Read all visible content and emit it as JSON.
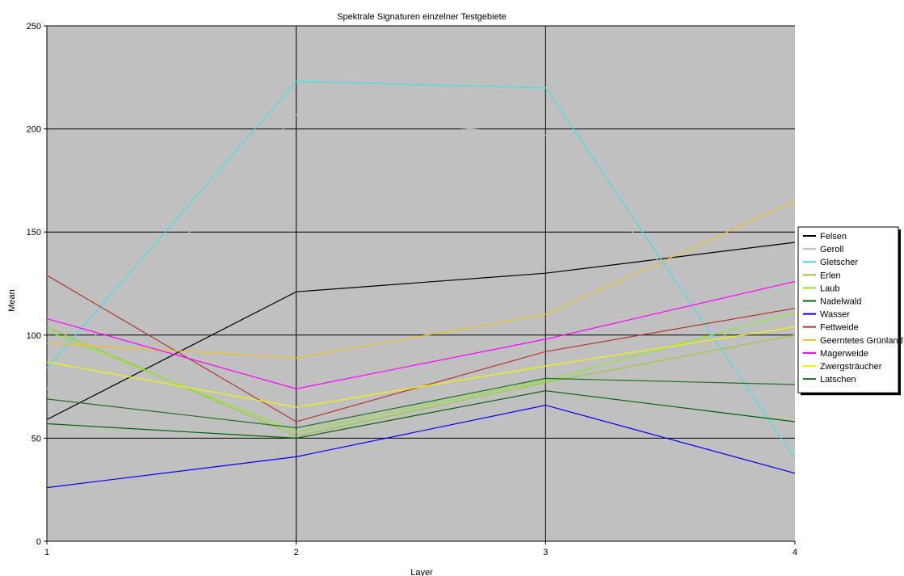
{
  "chart_data": {
    "type": "line",
    "title": "Spektrale Signaturen einzelner Testgebiete",
    "xlabel": "Layer",
    "ylabel": "Mean",
    "x": [
      1,
      2,
      3,
      4
    ],
    "xlim": [
      1,
      4
    ],
    "ylim": [
      0,
      250
    ],
    "y_ticks": [
      0,
      50,
      100,
      150,
      200,
      250
    ],
    "x_ticks": [
      1,
      2,
      3,
      4
    ],
    "grid": true,
    "plot_background": "#c0c0c0",
    "legend_position": "right",
    "series": [
      {
        "name": "Felsen",
        "color": "#000000",
        "values": [
          59,
          121,
          130,
          145
        ]
      },
      {
        "name": "Geroll",
        "color": "#c0c0c0",
        "values": [
          74,
          207,
          197,
          62
        ]
      },
      {
        "name": "Gletscher",
        "color": "#40e0e8",
        "values": [
          84,
          223,
          220,
          40
        ]
      },
      {
        "name": "Erlen",
        "color": "#99cc33",
        "values": [
          104,
          51,
          77,
          100
        ]
      },
      {
        "name": "Laub",
        "color": "#88ee22",
        "values": [
          102,
          53,
          78,
          111
        ]
      },
      {
        "name": "Nadelwald",
        "color": "#006400",
        "values": [
          57,
          50,
          73,
          58
        ]
      },
      {
        "name": "Wasser",
        "color": "#0000ee",
        "values": [
          26,
          41,
          66,
          33
        ]
      },
      {
        "name": "Fettweide",
        "color": "#b03a2e",
        "values": [
          129,
          58,
          92,
          113
        ]
      },
      {
        "name": "Geerntetes Grünland",
        "color": "#f0c020",
        "values": [
          96,
          89,
          110,
          165
        ]
      },
      {
        "name": "Magerweide",
        "color": "#ff00ff",
        "values": [
          108,
          74,
          98,
          126
        ]
      },
      {
        "name": "Zwergsträucher",
        "color": "#f4f400",
        "values": [
          87,
          65,
          85,
          104
        ]
      },
      {
        "name": "Latschen",
        "color": "#207020",
        "values": [
          69,
          55,
          79,
          76
        ]
      }
    ]
  }
}
